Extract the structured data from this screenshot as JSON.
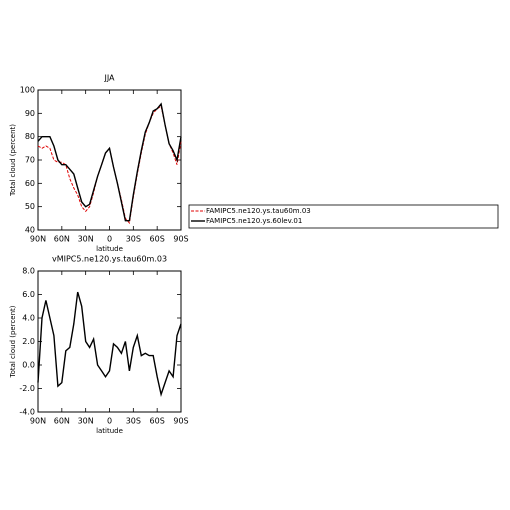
{
  "chart_data": [
    {
      "type": "line",
      "title": "JJA",
      "x_label": "latitude",
      "y_label": "Total cloud (percent)",
      "x": [
        90,
        85,
        80,
        75,
        70,
        65,
        60,
        55,
        50,
        45,
        40,
        35,
        30,
        25,
        20,
        15,
        10,
        5,
        0,
        -5,
        -10,
        -15,
        -20,
        -25,
        -30,
        -35,
        -40,
        -45,
        -50,
        -55,
        -60,
        -65,
        -70,
        -75,
        -80,
        -85,
        -90
      ],
      "xlim": [
        90,
        -90
      ],
      "xticks": [
        {
          "value": 90,
          "label": "90N"
        },
        {
          "value": 60,
          "label": "60N"
        },
        {
          "value": 30,
          "label": "30N"
        },
        0,
        {
          "value": -30,
          "label": "30S"
        },
        {
          "value": -60,
          "label": "60S"
        },
        {
          "value": -90,
          "label": "90S"
        }
      ],
      "ylim": [
        40,
        100
      ],
      "yticks": [
        40,
        50,
        60,
        70,
        80,
        90,
        100
      ],
      "legend": "right",
      "series": [
        {
          "name": "FAMIPC5.ne120.ys.tau60m.03",
          "color": "#e00000",
          "dashed": true,
          "values": [
            76,
            75,
            76,
            75,
            70,
            69,
            69,
            68,
            62,
            58,
            55,
            50,
            48,
            50,
            56,
            63,
            68,
            73,
            75,
            67,
            60,
            53,
            45,
            43,
            54,
            64,
            73,
            81,
            86,
            90,
            92,
            93,
            85,
            77,
            73,
            68,
            78
          ]
        },
        {
          "name": "FAMIPC5.ne120.ys.60lev.01",
          "color": "#000000",
          "dashed": false,
          "values": [
            78,
            80,
            80,
            80,
            76,
            70,
            68,
            68,
            66,
            64,
            58,
            52,
            50,
            51,
            57,
            63,
            68,
            73,
            75,
            67,
            60,
            52,
            44,
            44,
            55,
            65,
            74,
            82,
            86,
            91,
            92,
            94,
            85,
            77,
            74,
            70,
            80
          ]
        }
      ]
    },
    {
      "type": "line",
      "title": "vMIPC5.ne120.ys.tau60m.03",
      "x_label": "latitude",
      "y_label": "Total cloud (percent)",
      "x": [
        90,
        85,
        80,
        75,
        70,
        65,
        60,
        55,
        50,
        45,
        40,
        35,
        30,
        25,
        20,
        15,
        10,
        5,
        0,
        -5,
        -10,
        -15,
        -20,
        -25,
        -30,
        -35,
        -40,
        -45,
        -50,
        -55,
        -60,
        -65,
        -70,
        -75,
        -80,
        -85,
        -90
      ],
      "xlim": [
        90,
        -90
      ],
      "xticks": [
        {
          "value": 90,
          "label": "90N"
        },
        {
          "value": 60,
          "label": "60N"
        },
        {
          "value": 30,
          "label": "30N"
        },
        0,
        {
          "value": -30,
          "label": "30S"
        },
        {
          "value": -60,
          "label": "60S"
        },
        {
          "value": -90,
          "label": "90S"
        }
      ],
      "ylim": [
        -4,
        8
      ],
      "yticks": [
        {
          "value": -4,
          "label": "-4.0"
        },
        {
          "value": -2,
          "label": "-2.0"
        },
        {
          "value": 0,
          "label": "0.0"
        },
        {
          "value": 2,
          "label": "2.0"
        },
        {
          "value": 4,
          "label": "4.0"
        },
        {
          "value": 6,
          "label": "6.0"
        },
        {
          "value": 8,
          "label": "8.0"
        }
      ],
      "series": [
        {
          "color": "#000000",
          "dashed": false,
          "values": [
            -1.5,
            4.0,
            5.5,
            4.0,
            2.5,
            -1.8,
            -1.5,
            1.2,
            1.5,
            3.5,
            6.2,
            5.0,
            2.0,
            1.5,
            2.2,
            0.0,
            -0.5,
            -1.0,
            -0.5,
            1.8,
            1.5,
            1.0,
            2.0,
            -0.5,
            1.5,
            2.5,
            0.8,
            1.0,
            0.8,
            0.8,
            -1.0,
            -2.5,
            -1.5,
            -0.5,
            -1.0,
            2.5,
            3.5
          ]
        }
      ]
    }
  ]
}
